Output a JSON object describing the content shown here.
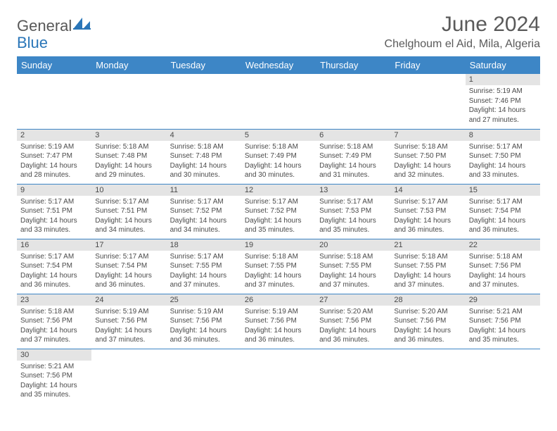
{
  "brand": {
    "text1": "General",
    "text2": "Blue"
  },
  "title": "June 2024",
  "location": "Chelghoum el Aid, Mila, Algeria",
  "colors": {
    "header_bg": "#3d86c6",
    "header_text": "#ffffff",
    "daynum_bg": "#e4e4e4",
    "text": "#4a4a4a",
    "row_border": "#3d86c6",
    "brand_gray": "#585858",
    "brand_blue": "#2a76b8"
  },
  "weekdays": [
    "Sunday",
    "Monday",
    "Tuesday",
    "Wednesday",
    "Thursday",
    "Friday",
    "Saturday"
  ],
  "weeks": [
    [
      null,
      null,
      null,
      null,
      null,
      null,
      {
        "d": "1",
        "sr": "5:19 AM",
        "ss": "7:46 PM",
        "dl": "14 hours and 27 minutes."
      }
    ],
    [
      {
        "d": "2",
        "sr": "5:19 AM",
        "ss": "7:47 PM",
        "dl": "14 hours and 28 minutes."
      },
      {
        "d": "3",
        "sr": "5:18 AM",
        "ss": "7:48 PM",
        "dl": "14 hours and 29 minutes."
      },
      {
        "d": "4",
        "sr": "5:18 AM",
        "ss": "7:48 PM",
        "dl": "14 hours and 30 minutes."
      },
      {
        "d": "5",
        "sr": "5:18 AM",
        "ss": "7:49 PM",
        "dl": "14 hours and 30 minutes."
      },
      {
        "d": "6",
        "sr": "5:18 AM",
        "ss": "7:49 PM",
        "dl": "14 hours and 31 minutes."
      },
      {
        "d": "7",
        "sr": "5:18 AM",
        "ss": "7:50 PM",
        "dl": "14 hours and 32 minutes."
      },
      {
        "d": "8",
        "sr": "5:17 AM",
        "ss": "7:50 PM",
        "dl": "14 hours and 33 minutes."
      }
    ],
    [
      {
        "d": "9",
        "sr": "5:17 AM",
        "ss": "7:51 PM",
        "dl": "14 hours and 33 minutes."
      },
      {
        "d": "10",
        "sr": "5:17 AM",
        "ss": "7:51 PM",
        "dl": "14 hours and 34 minutes."
      },
      {
        "d": "11",
        "sr": "5:17 AM",
        "ss": "7:52 PM",
        "dl": "14 hours and 34 minutes."
      },
      {
        "d": "12",
        "sr": "5:17 AM",
        "ss": "7:52 PM",
        "dl": "14 hours and 35 minutes."
      },
      {
        "d": "13",
        "sr": "5:17 AM",
        "ss": "7:53 PM",
        "dl": "14 hours and 35 minutes."
      },
      {
        "d": "14",
        "sr": "5:17 AM",
        "ss": "7:53 PM",
        "dl": "14 hours and 36 minutes."
      },
      {
        "d": "15",
        "sr": "5:17 AM",
        "ss": "7:54 PM",
        "dl": "14 hours and 36 minutes."
      }
    ],
    [
      {
        "d": "16",
        "sr": "5:17 AM",
        "ss": "7:54 PM",
        "dl": "14 hours and 36 minutes."
      },
      {
        "d": "17",
        "sr": "5:17 AM",
        "ss": "7:54 PM",
        "dl": "14 hours and 36 minutes."
      },
      {
        "d": "18",
        "sr": "5:17 AM",
        "ss": "7:55 PM",
        "dl": "14 hours and 37 minutes."
      },
      {
        "d": "19",
        "sr": "5:18 AM",
        "ss": "7:55 PM",
        "dl": "14 hours and 37 minutes."
      },
      {
        "d": "20",
        "sr": "5:18 AM",
        "ss": "7:55 PM",
        "dl": "14 hours and 37 minutes."
      },
      {
        "d": "21",
        "sr": "5:18 AM",
        "ss": "7:55 PM",
        "dl": "14 hours and 37 minutes."
      },
      {
        "d": "22",
        "sr": "5:18 AM",
        "ss": "7:56 PM",
        "dl": "14 hours and 37 minutes."
      }
    ],
    [
      {
        "d": "23",
        "sr": "5:18 AM",
        "ss": "7:56 PM",
        "dl": "14 hours and 37 minutes."
      },
      {
        "d": "24",
        "sr": "5:19 AM",
        "ss": "7:56 PM",
        "dl": "14 hours and 37 minutes."
      },
      {
        "d": "25",
        "sr": "5:19 AM",
        "ss": "7:56 PM",
        "dl": "14 hours and 36 minutes."
      },
      {
        "d": "26",
        "sr": "5:19 AM",
        "ss": "7:56 PM",
        "dl": "14 hours and 36 minutes."
      },
      {
        "d": "27",
        "sr": "5:20 AM",
        "ss": "7:56 PM",
        "dl": "14 hours and 36 minutes."
      },
      {
        "d": "28",
        "sr": "5:20 AM",
        "ss": "7:56 PM",
        "dl": "14 hours and 36 minutes."
      },
      {
        "d": "29",
        "sr": "5:21 AM",
        "ss": "7:56 PM",
        "dl": "14 hours and 35 minutes."
      }
    ],
    [
      {
        "d": "30",
        "sr": "5:21 AM",
        "ss": "7:56 PM",
        "dl": "14 hours and 35 minutes."
      },
      null,
      null,
      null,
      null,
      null,
      null
    ]
  ],
  "labels": {
    "sunrise": "Sunrise:",
    "sunset": "Sunset:",
    "daylight": "Daylight:"
  }
}
